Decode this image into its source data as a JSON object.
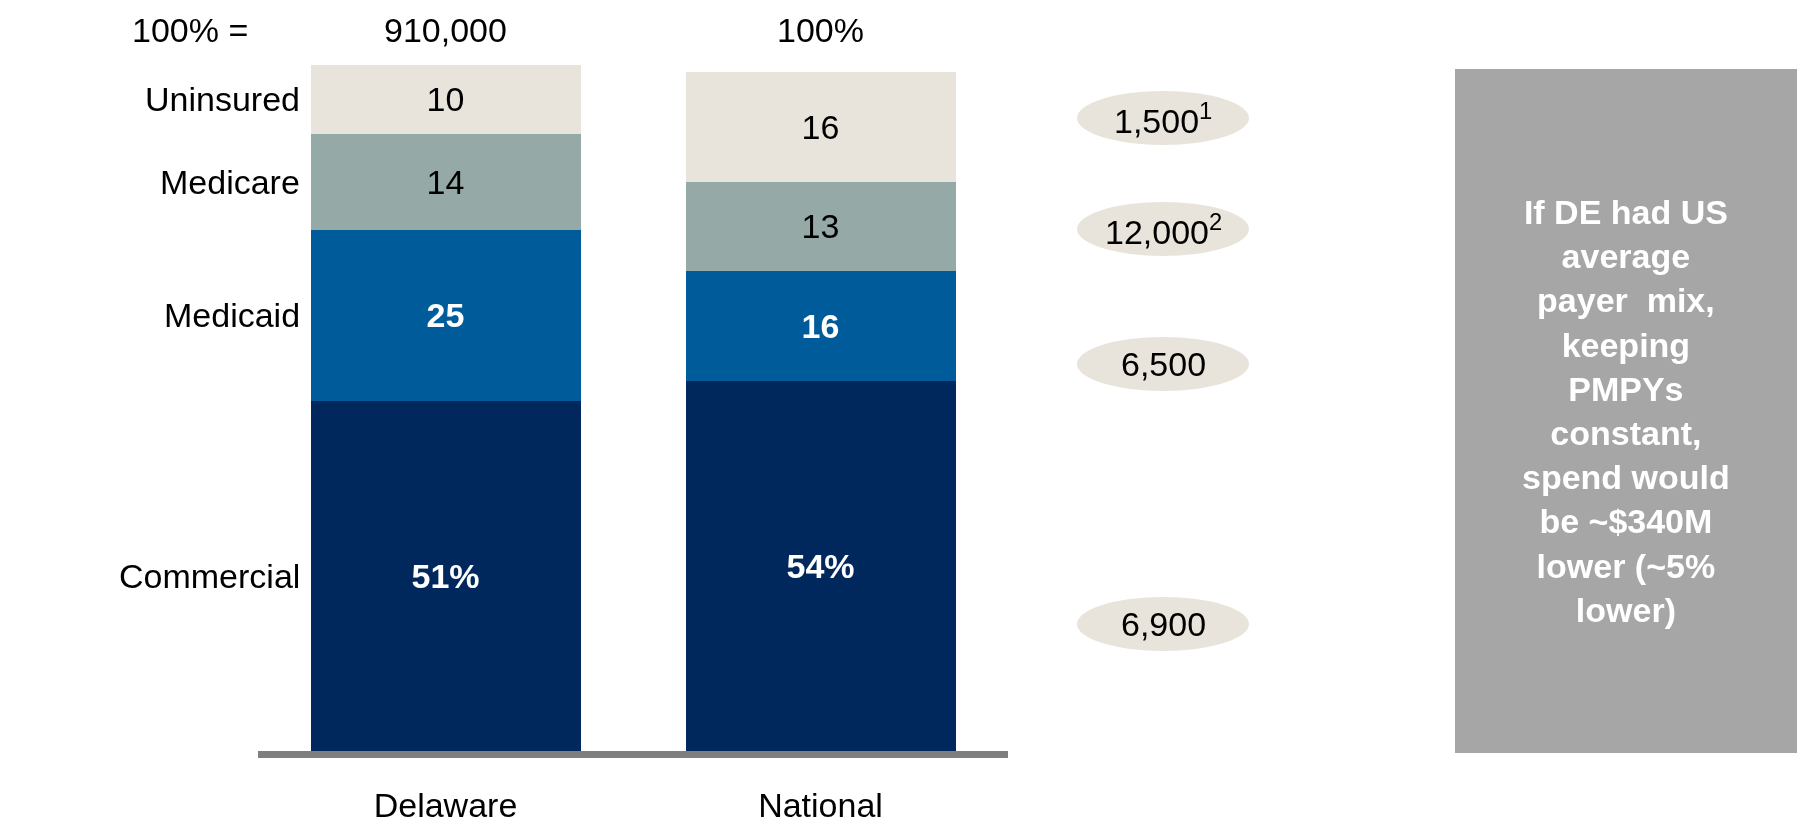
{
  "chart_data": {
    "type": "bar",
    "stacked": true,
    "categories": [
      "Delaware",
      "National"
    ],
    "ylim": [
      0,
      100
    ],
    "tick_labels": "x",
    "legend": false,
    "series": [
      {
        "name": "Commercial",
        "color": "#00285c",
        "values": [
          51,
          54
        ],
        "value_labels": [
          "51%",
          "54%"
        ]
      },
      {
        "name": "Medicaid",
        "color": "#005b9b",
        "values": [
          25,
          16
        ],
        "value_labels": [
          "25",
          "16"
        ]
      },
      {
        "name": "Medicare",
        "color": "#95a9a7",
        "values": [
          14,
          13
        ],
        "value_labels": [
          "14",
          "13"
        ]
      },
      {
        "name": "Uninsured",
        "color": "#e8e4dc",
        "values": [
          10,
          16
        ],
        "value_labels": [
          "10",
          "16"
        ]
      }
    ],
    "annotations": [
      "100% =",
      "910,000",
      "100%",
      "1,500$^{1}$",
      "12,000$^{2}$",
      "6,500",
      "6,900",
      "If DE had US\naverage\npayer  mix,\nkeeping\nPMPYs\nconstant,\nspend would\nbe ~$340M\nlower (~5%\nlower)"
    ]
  }
}
